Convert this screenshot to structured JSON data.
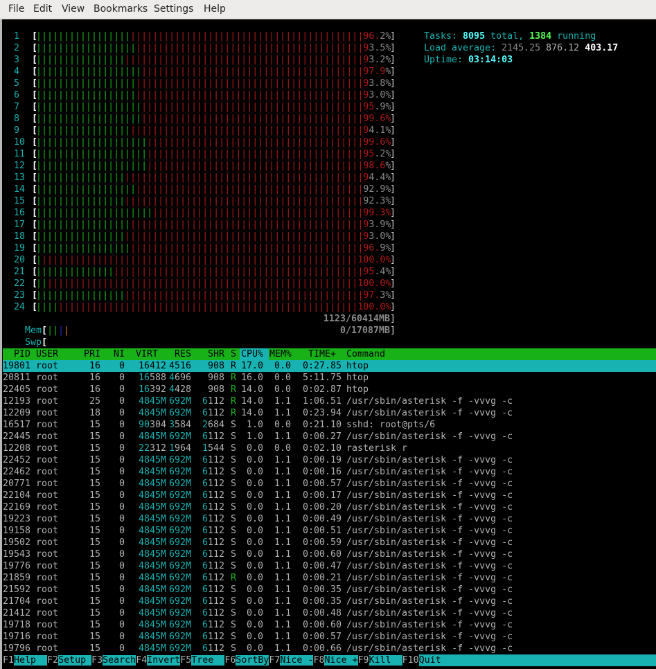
{
  "menu": [
    "File",
    "Edit",
    "View",
    "Bookmarks",
    "Settings",
    "Help"
  ],
  "colors": {
    "green": "#18b218",
    "red": "#b21818",
    "cyan": "#18b2b2",
    "bright_cyan": "#54ffff",
    "bright_green": "#54ff54"
  },
  "cpus": [
    {
      "id": "1",
      "total": 96.2,
      "user": 26.6
    },
    {
      "id": "2",
      "total": 93.5,
      "user": 28.1
    },
    {
      "id": "3",
      "total": 93.2,
      "user": 25.0
    },
    {
      "id": "4",
      "total": 97.9,
      "user": 29.7
    },
    {
      "id": "5",
      "total": 93.8,
      "user": 28.1
    },
    {
      "id": "6",
      "total": 93.0,
      "user": 28.1
    },
    {
      "id": "7",
      "total": 95.9,
      "user": 29.7
    },
    {
      "id": "8",
      "total": 99.6,
      "user": 29.7
    },
    {
      "id": "9",
      "total": 94.1,
      "user": 26.6
    },
    {
      "id": "10",
      "total": 99.6,
      "user": 31.3
    },
    {
      "id": "11",
      "total": 95.2,
      "user": 31.3
    },
    {
      "id": "12",
      "total": 98.6,
      "user": 31.3
    },
    {
      "id": "13",
      "total": 94.4,
      "user": 25.0
    },
    {
      "id": "14",
      "total": 92.9,
      "user": 28.1
    },
    {
      "id": "15",
      "total": 92.3,
      "user": 25.0
    },
    {
      "id": "16",
      "total": 99.3,
      "user": 32.8
    },
    {
      "id": "17",
      "total": 93.9,
      "user": 26.6
    },
    {
      "id": "18",
      "total": 93.0,
      "user": 25.0
    },
    {
      "id": "19",
      "total": 96.9,
      "user": 26.6
    },
    {
      "id": "20",
      "total": 100.0,
      "user": 1.6
    },
    {
      "id": "21",
      "total": 95.4,
      "user": 21.9
    },
    {
      "id": "22",
      "total": 100.0,
      "user": 3.1
    },
    {
      "id": "23",
      "total": 97.3,
      "user": 25.0
    },
    {
      "id": "24",
      "total": 100.0,
      "user": 6.3
    }
  ],
  "mem": {
    "label": "Mem",
    "value": "1123/60414MB"
  },
  "swp": {
    "label": "Swp",
    "value": "0/17087MB"
  },
  "summary": {
    "tasks_label": "Tasks: ",
    "tasks_total": "8095",
    "tasks_mid": " total, ",
    "tasks_running": "1384",
    "tasks_end": " running",
    "load_label": "Load average: ",
    "load1": "2145.25",
    "load5": "876.12",
    "load15": "403.17",
    "uptime_label": "Uptime: ",
    "uptime": "03:14:03"
  },
  "columns": {
    "pid": "PID",
    "user": "USER",
    "pri": "PRI",
    "ni": "NI",
    "virt": "VIRT",
    "res": "RES",
    "shr": "SHR",
    "s": "S",
    "cpu": "CPU%",
    "mem": "MEM%",
    "time": "TIME+",
    "command": "Command"
  },
  "selected_pid": "19801",
  "processes": [
    [
      "19801",
      "root",
      "16",
      "0",
      "16412",
      "4516",
      "908",
      "R",
      "17.0",
      "0.0",
      "0:27.85",
      "htop"
    ],
    [
      "20811",
      "root",
      "16",
      "0",
      "16588",
      "4696",
      "908",
      "R",
      "16.0",
      "0.0",
      "5:11.75",
      "htop"
    ],
    [
      "22405",
      "root",
      "16",
      "0",
      "16392",
      "4428",
      "908",
      "R",
      "14.0",
      "0.0",
      "0:02.87",
      "htop"
    ],
    [
      "12193",
      "root",
      "25",
      "0",
      "4845M",
      "692M",
      "6112",
      "R",
      "14.0",
      "1.1",
      "1:06.51",
      "/usr/sbin/asterisk -f -vvvg -c"
    ],
    [
      "12209",
      "root",
      "18",
      "0",
      "4845M",
      "692M",
      "6112",
      "R",
      "14.0",
      "1.1",
      "0:23.94",
      "/usr/sbin/asterisk -f -vvvg -c"
    ],
    [
      "16517",
      "root",
      "15",
      "0",
      "90304",
      "3584",
      "2684",
      "S",
      "1.0",
      "0.0",
      "0:21.10",
      "sshd: root@pts/6"
    ],
    [
      "22445",
      "root",
      "15",
      "0",
      "4845M",
      "692M",
      "6112",
      "S",
      "1.0",
      "1.1",
      "0:00.27",
      "/usr/sbin/asterisk -f -vvvg -c"
    ],
    [
      "12208",
      "root",
      "15",
      "0",
      "22312",
      "1964",
      "1544",
      "S",
      "0.0",
      "0.0",
      "0:02.10",
      "rasterisk r"
    ],
    [
      "22452",
      "root",
      "15",
      "0",
      "4845M",
      "692M",
      "6112",
      "S",
      "0.0",
      "1.1",
      "0:00.19",
      "/usr/sbin/asterisk -f -vvvg -c"
    ],
    [
      "22462",
      "root",
      "15",
      "0",
      "4845M",
      "692M",
      "6112",
      "S",
      "0.0",
      "1.1",
      "0:00.16",
      "/usr/sbin/asterisk -f -vvvg -c"
    ],
    [
      "20771",
      "root",
      "15",
      "0",
      "4845M",
      "692M",
      "6112",
      "S",
      "0.0",
      "1.1",
      "0:00.57",
      "/usr/sbin/asterisk -f -vvvg -c"
    ],
    [
      "22104",
      "root",
      "15",
      "0",
      "4845M",
      "692M",
      "6112",
      "S",
      "0.0",
      "1.1",
      "0:00.17",
      "/usr/sbin/asterisk -f -vvvg -c"
    ],
    [
      "22169",
      "root",
      "15",
      "0",
      "4845M",
      "692M",
      "6112",
      "S",
      "0.0",
      "1.1",
      "0:00.20",
      "/usr/sbin/asterisk -f -vvvg -c"
    ],
    [
      "19223",
      "root",
      "15",
      "0",
      "4845M",
      "692M",
      "6112",
      "S",
      "0.0",
      "1.1",
      "0:00.49",
      "/usr/sbin/asterisk -f -vvvg -c"
    ],
    [
      "19158",
      "root",
      "15",
      "0",
      "4845M",
      "692M",
      "6112",
      "S",
      "0.0",
      "1.1",
      "0:00.51",
      "/usr/sbin/asterisk -f -vvvg -c"
    ],
    [
      "19502",
      "root",
      "15",
      "0",
      "4845M",
      "692M",
      "6112",
      "S",
      "0.0",
      "1.1",
      "0:00.59",
      "/usr/sbin/asterisk -f -vvvg -c"
    ],
    [
      "19543",
      "root",
      "15",
      "0",
      "4845M",
      "692M",
      "6112",
      "S",
      "0.0",
      "1.1",
      "0:00.60",
      "/usr/sbin/asterisk -f -vvvg -c"
    ],
    [
      "19776",
      "root",
      "15",
      "0",
      "4845M",
      "692M",
      "6112",
      "S",
      "0.0",
      "1.1",
      "0:00.47",
      "/usr/sbin/asterisk -f -vvvg -c"
    ],
    [
      "21859",
      "root",
      "15",
      "0",
      "4845M",
      "692M",
      "6112",
      "R",
      "0.0",
      "1.1",
      "0:00.21",
      "/usr/sbin/asterisk -f -vvvg -c"
    ],
    [
      "21592",
      "root",
      "15",
      "0",
      "4845M",
      "692M",
      "6112",
      "S",
      "0.0",
      "1.1",
      "0:00.35",
      "/usr/sbin/asterisk -f -vvvg -c"
    ],
    [
      "21704",
      "root",
      "15",
      "0",
      "4845M",
      "692M",
      "6112",
      "S",
      "0.0",
      "1.1",
      "0:00.35",
      "/usr/sbin/asterisk -f -vvvg -c"
    ],
    [
      "21412",
      "root",
      "15",
      "0",
      "4845M",
      "692M",
      "6112",
      "S",
      "0.0",
      "1.1",
      "0:00.48",
      "/usr/sbin/asterisk -f -vvvg -c"
    ],
    [
      "19718",
      "root",
      "15",
      "0",
      "4845M",
      "692M",
      "6112",
      "S",
      "0.0",
      "1.1",
      "0:00.60",
      "/usr/sbin/asterisk -f -vvvg -c"
    ],
    [
      "19716",
      "root",
      "15",
      "0",
      "4845M",
      "692M",
      "6112",
      "S",
      "0.0",
      "1.1",
      "0:00.57",
      "/usr/sbin/asterisk -f -vvvg -c"
    ],
    [
      "19796",
      "root",
      "15",
      "0",
      "4845M",
      "692M",
      "6112",
      "S",
      "0.0",
      "1.1",
      "0:00.66",
      "/usr/sbin/asterisk -f -vvvg -c"
    ]
  ],
  "function_keys": [
    {
      "key": "F1",
      "label": "Help  "
    },
    {
      "key": "F2",
      "label": "Setup "
    },
    {
      "key": "F3",
      "label": "Search"
    },
    {
      "key": "F4",
      "label": "Invert"
    },
    {
      "key": "F5",
      "label": "Tree  "
    },
    {
      "key": "F6",
      "label": "SortBy"
    },
    {
      "key": "F7",
      "label": "Nice -"
    },
    {
      "key": "F8",
      "label": "Nice +"
    },
    {
      "key": "F9",
      "label": "Kill  "
    },
    {
      "key": "F10",
      "label": "Quit"
    }
  ]
}
